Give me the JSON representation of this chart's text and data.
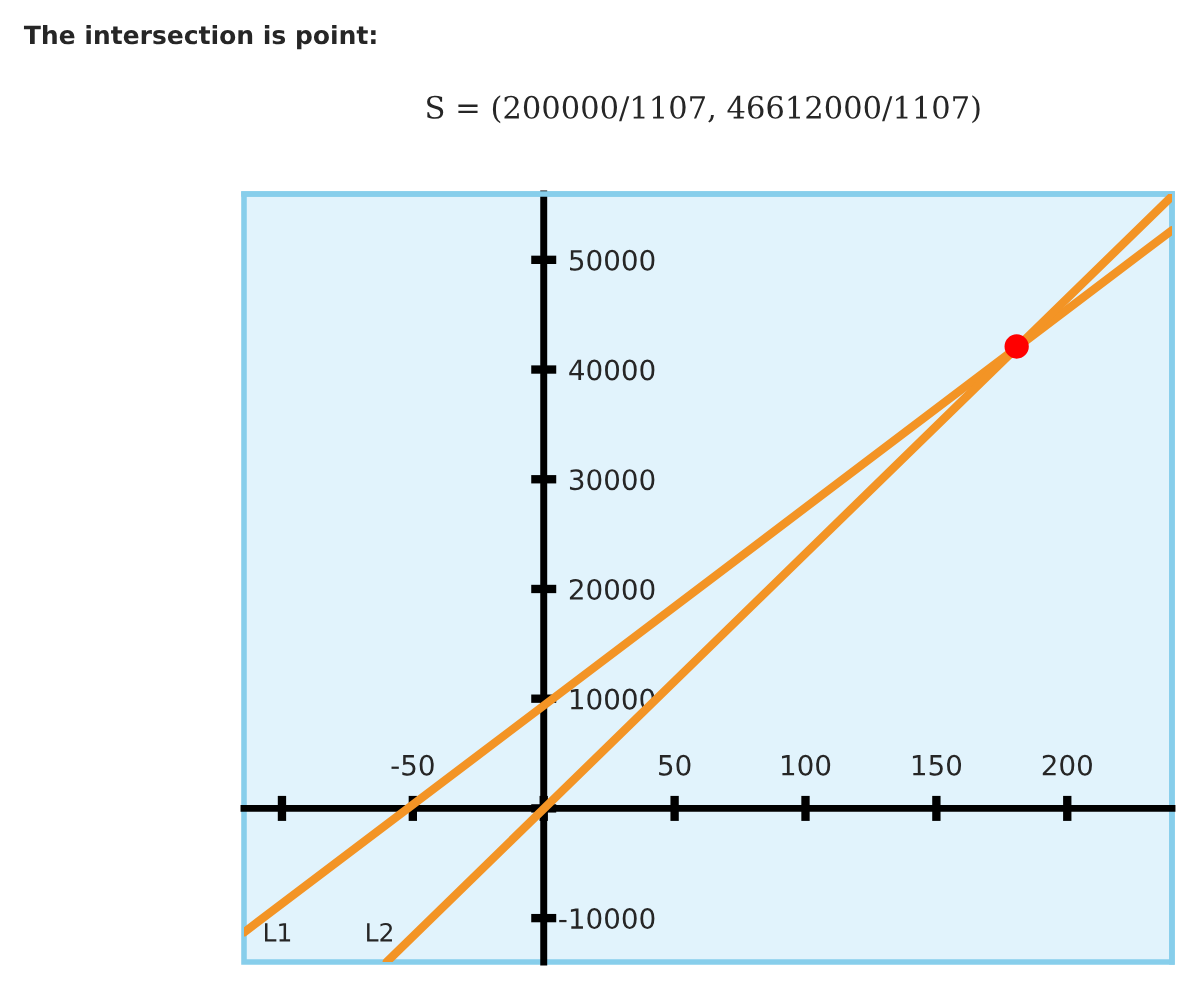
{
  "chart_data": {
    "type": "line",
    "title": "The intersection is point:",
    "annotations": [
      "S = (200000/1107, 46612000/1107)"
    ],
    "series": [
      {
        "name": "L1",
        "color": "#f39425",
        "x": [
          -114.5,
          240
        ],
        "values": [
          -11300,
          52700
        ]
      },
      {
        "name": "L2",
        "color": "#f39425",
        "x": [
          -60,
          240
        ],
        "values": [
          -14000,
          55800
        ]
      },
      {
        "type": "scatter",
        "color": "#ff0000",
        "x": [
          180.67
        ],
        "values": [
          42100
        ]
      }
    ],
    "xlim": [
      -114.5,
      240
    ],
    "ylim": [
      -14000,
      56000
    ],
    "xticks": [
      {
        "value": -100,
        "label": null
      },
      -50,
      {
        "value": 0,
        "label": null
      },
      50,
      100,
      150,
      200
    ],
    "yticks": [
      -10000,
      {
        "value": 0,
        "label": null
      },
      10000,
      20000,
      30000,
      40000,
      50000
    ],
    "grid": false,
    "legend": false
  }
}
